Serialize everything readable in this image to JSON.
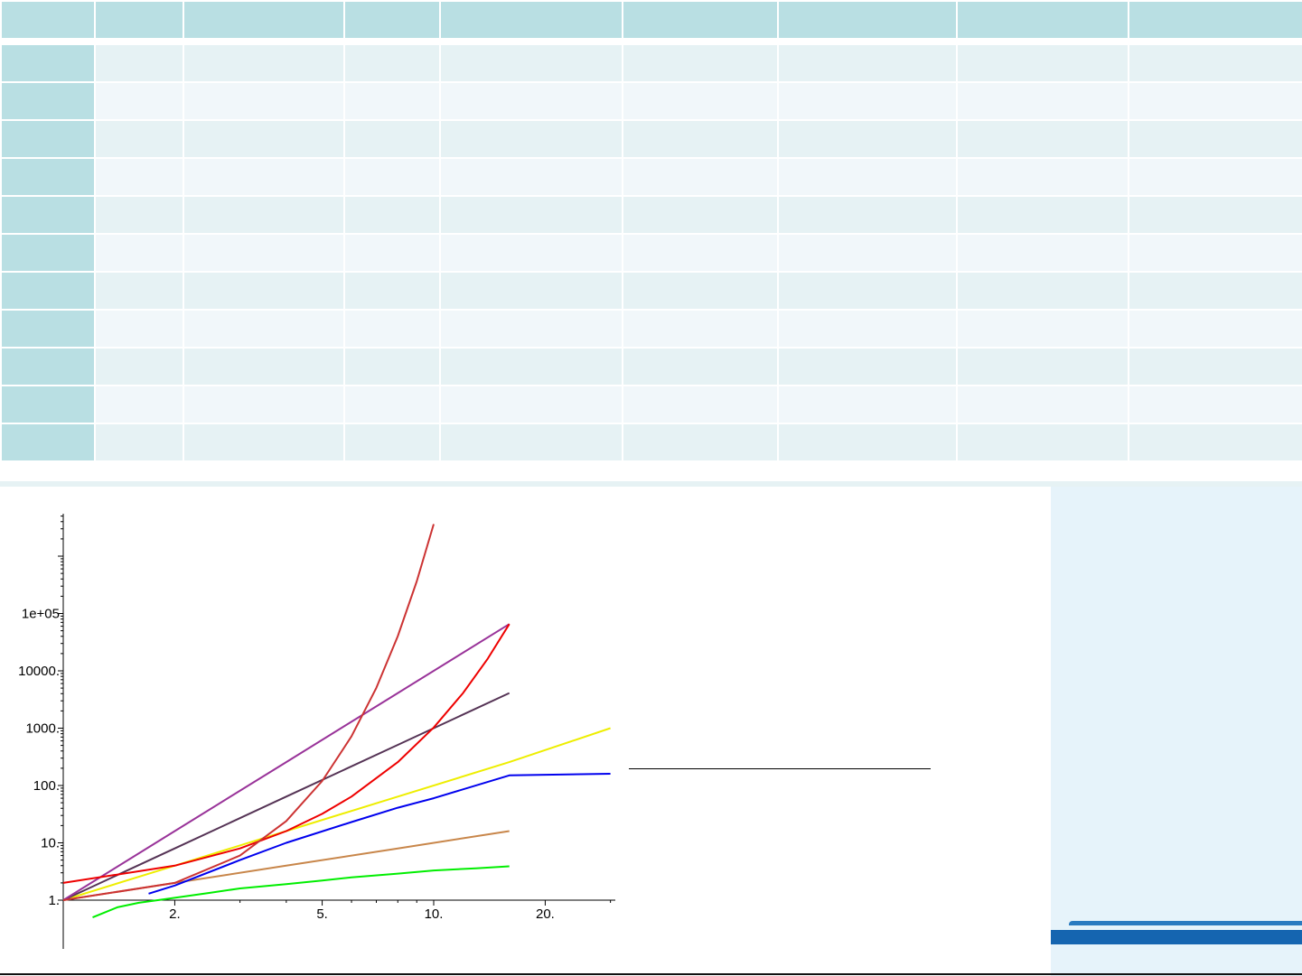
{
  "table": {
    "header": [
      "",
      "",
      "",
      "",
      "",
      "",
      "",
      "",
      ""
    ],
    "rows": [
      [
        "",
        "",
        "",
        "",
        "",
        "",
        "",
        "",
        ""
      ],
      [
        "",
        "",
        "",
        "",
        "",
        "",
        "",
        "",
        ""
      ],
      [
        "",
        "",
        "",
        "",
        "",
        "",
        "",
        "",
        ""
      ],
      [
        "",
        "",
        "",
        "",
        "",
        "",
        "",
        "",
        ""
      ],
      [
        "",
        "",
        "",
        "",
        "",
        "",
        "",
        "",
        ""
      ],
      [
        "",
        "",
        "",
        "",
        "",
        "",
        "",
        "",
        ""
      ],
      [
        "",
        "",
        "",
        "",
        "",
        "",
        "",
        "",
        ""
      ],
      [
        "",
        "",
        "",
        "",
        "",
        "",
        "",
        "",
        ""
      ],
      [
        "",
        "",
        "",
        "",
        "",
        "",
        "",
        "",
        ""
      ],
      [
        "",
        "",
        "",
        "",
        "",
        "",
        "",
        "",
        ""
      ],
      [
        "",
        "",
        "",
        "",
        "",
        "",
        "",
        "",
        ""
      ]
    ]
  },
  "colors": {
    "table_header": "#b9dfe3",
    "panel": "#e6f3fa",
    "logo_blue": "#1565b0"
  },
  "chart_data": {
    "type": "line",
    "title": "",
    "xlabel": "",
    "ylabel": "",
    "x_scale": "log",
    "y_scale": "log",
    "x_ticks": [
      {
        "value": 2,
        "label": "2."
      },
      {
        "value": 5,
        "label": "5."
      },
      {
        "value": 10,
        "label": "10."
      },
      {
        "value": 20,
        "label": "20."
      }
    ],
    "y_ticks": [
      {
        "value": 1,
        "label": "1."
      },
      {
        "value": 10,
        "label": "10."
      },
      {
        "value": 100,
        "label": "100."
      },
      {
        "value": 1000,
        "label": "1000."
      },
      {
        "value": 10000,
        "label": "10000."
      },
      {
        "value": 100000,
        "label": "1e+05"
      }
    ],
    "xlim": [
      1,
      30
    ],
    "ylim": [
      0.3,
      3000000
    ],
    "grid": false,
    "series": [
      {
        "color": "#00ee00",
        "x": [
          1.2,
          1.4,
          1.6,
          1.8,
          2,
          2.5,
          3,
          4,
          5,
          6,
          8,
          10,
          13,
          16
        ],
        "y": [
          0.5,
          0.75,
          0.9,
          1.0,
          1.1,
          1.35,
          1.6,
          1.9,
          2.2,
          2.5,
          2.9,
          3.3,
          3.6,
          3.9
        ]
      },
      {
        "color": "#c8864a",
        "x": [
          1,
          2,
          4,
          8,
          16
        ],
        "y": [
          1,
          2,
          4,
          8,
          16
        ]
      },
      {
        "color": "#0000ee",
        "x": [
          1.7,
          2,
          3,
          4,
          6,
          8,
          10,
          16,
          30
        ],
        "y": [
          1.3,
          1.8,
          5,
          10,
          23,
          41,
          60,
          150,
          160
        ]
      },
      {
        "color": "#eeee00",
        "x": [
          1,
          2,
          4,
          8,
          16,
          30
        ],
        "y": [
          1,
          4,
          16,
          64,
          256,
          1000
        ]
      },
      {
        "color": "#553355",
        "x": [
          1,
          2,
          4,
          8,
          16
        ],
        "y": [
          1,
          8,
          64,
          512,
          4096
        ]
      },
      {
        "color": "#993399",
        "x": [
          1,
          2,
          4,
          8,
          16
        ],
        "y": [
          1,
          16,
          256,
          4096,
          65536
        ]
      },
      {
        "color": "#ee0000",
        "x": [
          1,
          2,
          3,
          4,
          5,
          6,
          8,
          10,
          12,
          14,
          16
        ],
        "y": [
          2,
          4,
          8,
          16,
          32,
          64,
          256,
          1024,
          4096,
          16384,
          65536
        ]
      },
      {
        "color": "#cc3333",
        "x": [
          1,
          2,
          3,
          4,
          5,
          6,
          7,
          8,
          9,
          10
        ],
        "y": [
          1,
          2,
          6,
          24,
          120,
          720,
          5040,
          40320,
          362880,
          3628800
        ]
      }
    ]
  }
}
